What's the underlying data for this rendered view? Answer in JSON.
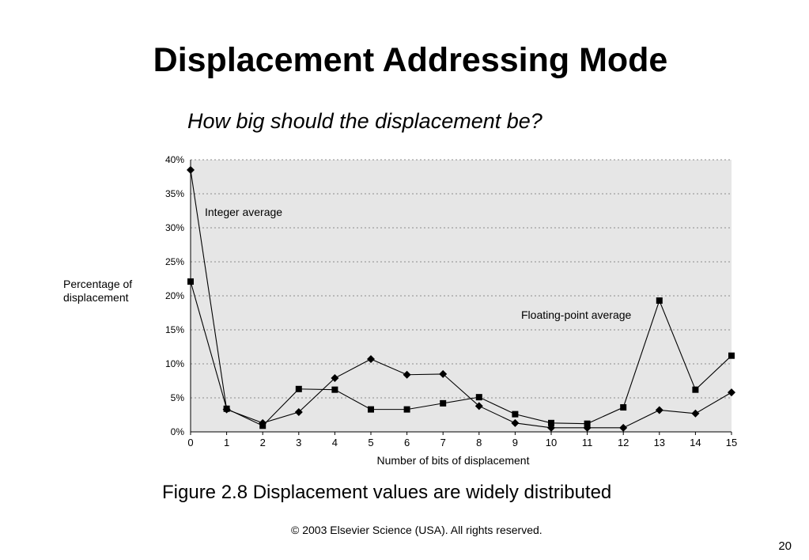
{
  "slide": {
    "title": "Displacement Addressing Mode",
    "subtitle": "How big should the displacement be?",
    "caption": "Figure 2.8 Displacement values are widely distributed",
    "copyright": "© 2003 Elsevier Science (USA). All rights reserved.",
    "page_number": "20"
  },
  "chart_data": {
    "type": "line",
    "title": "",
    "xlabel": "Number of bits of displacement",
    "ylabel": "Percentage of\ndisplacement",
    "x": [
      0,
      1,
      2,
      3,
      4,
      5,
      6,
      7,
      8,
      9,
      10,
      11,
      12,
      13,
      14,
      15
    ],
    "xlim": [
      0,
      15
    ],
    "ylim": [
      0,
      40
    ],
    "y_ticks": [
      "0%",
      "5%",
      "10%",
      "15%",
      "20%",
      "25%",
      "30%",
      "35%",
      "40%"
    ],
    "grid": "horizontal dotted",
    "plot_background": "#e6e6e6",
    "series": [
      {
        "name": "Integer average",
        "marker": "diamond",
        "values": [
          38.5,
          3.3,
          1.3,
          2.9,
          7.9,
          10.7,
          8.4,
          8.5,
          3.8,
          1.3,
          0.6,
          0.6,
          0.6,
          3.2,
          2.7,
          5.8
        ]
      },
      {
        "name": "Floating-point average",
        "marker": "square",
        "values": [
          22.1,
          3.4,
          0.9,
          6.3,
          6.2,
          3.3,
          3.3,
          4.2,
          5.1,
          2.6,
          1.3,
          1.2,
          3.6,
          19.3,
          6.2,
          11.2
        ]
      }
    ],
    "colors": {
      "line": "#000000",
      "grid": "#8c8c8c"
    }
  }
}
